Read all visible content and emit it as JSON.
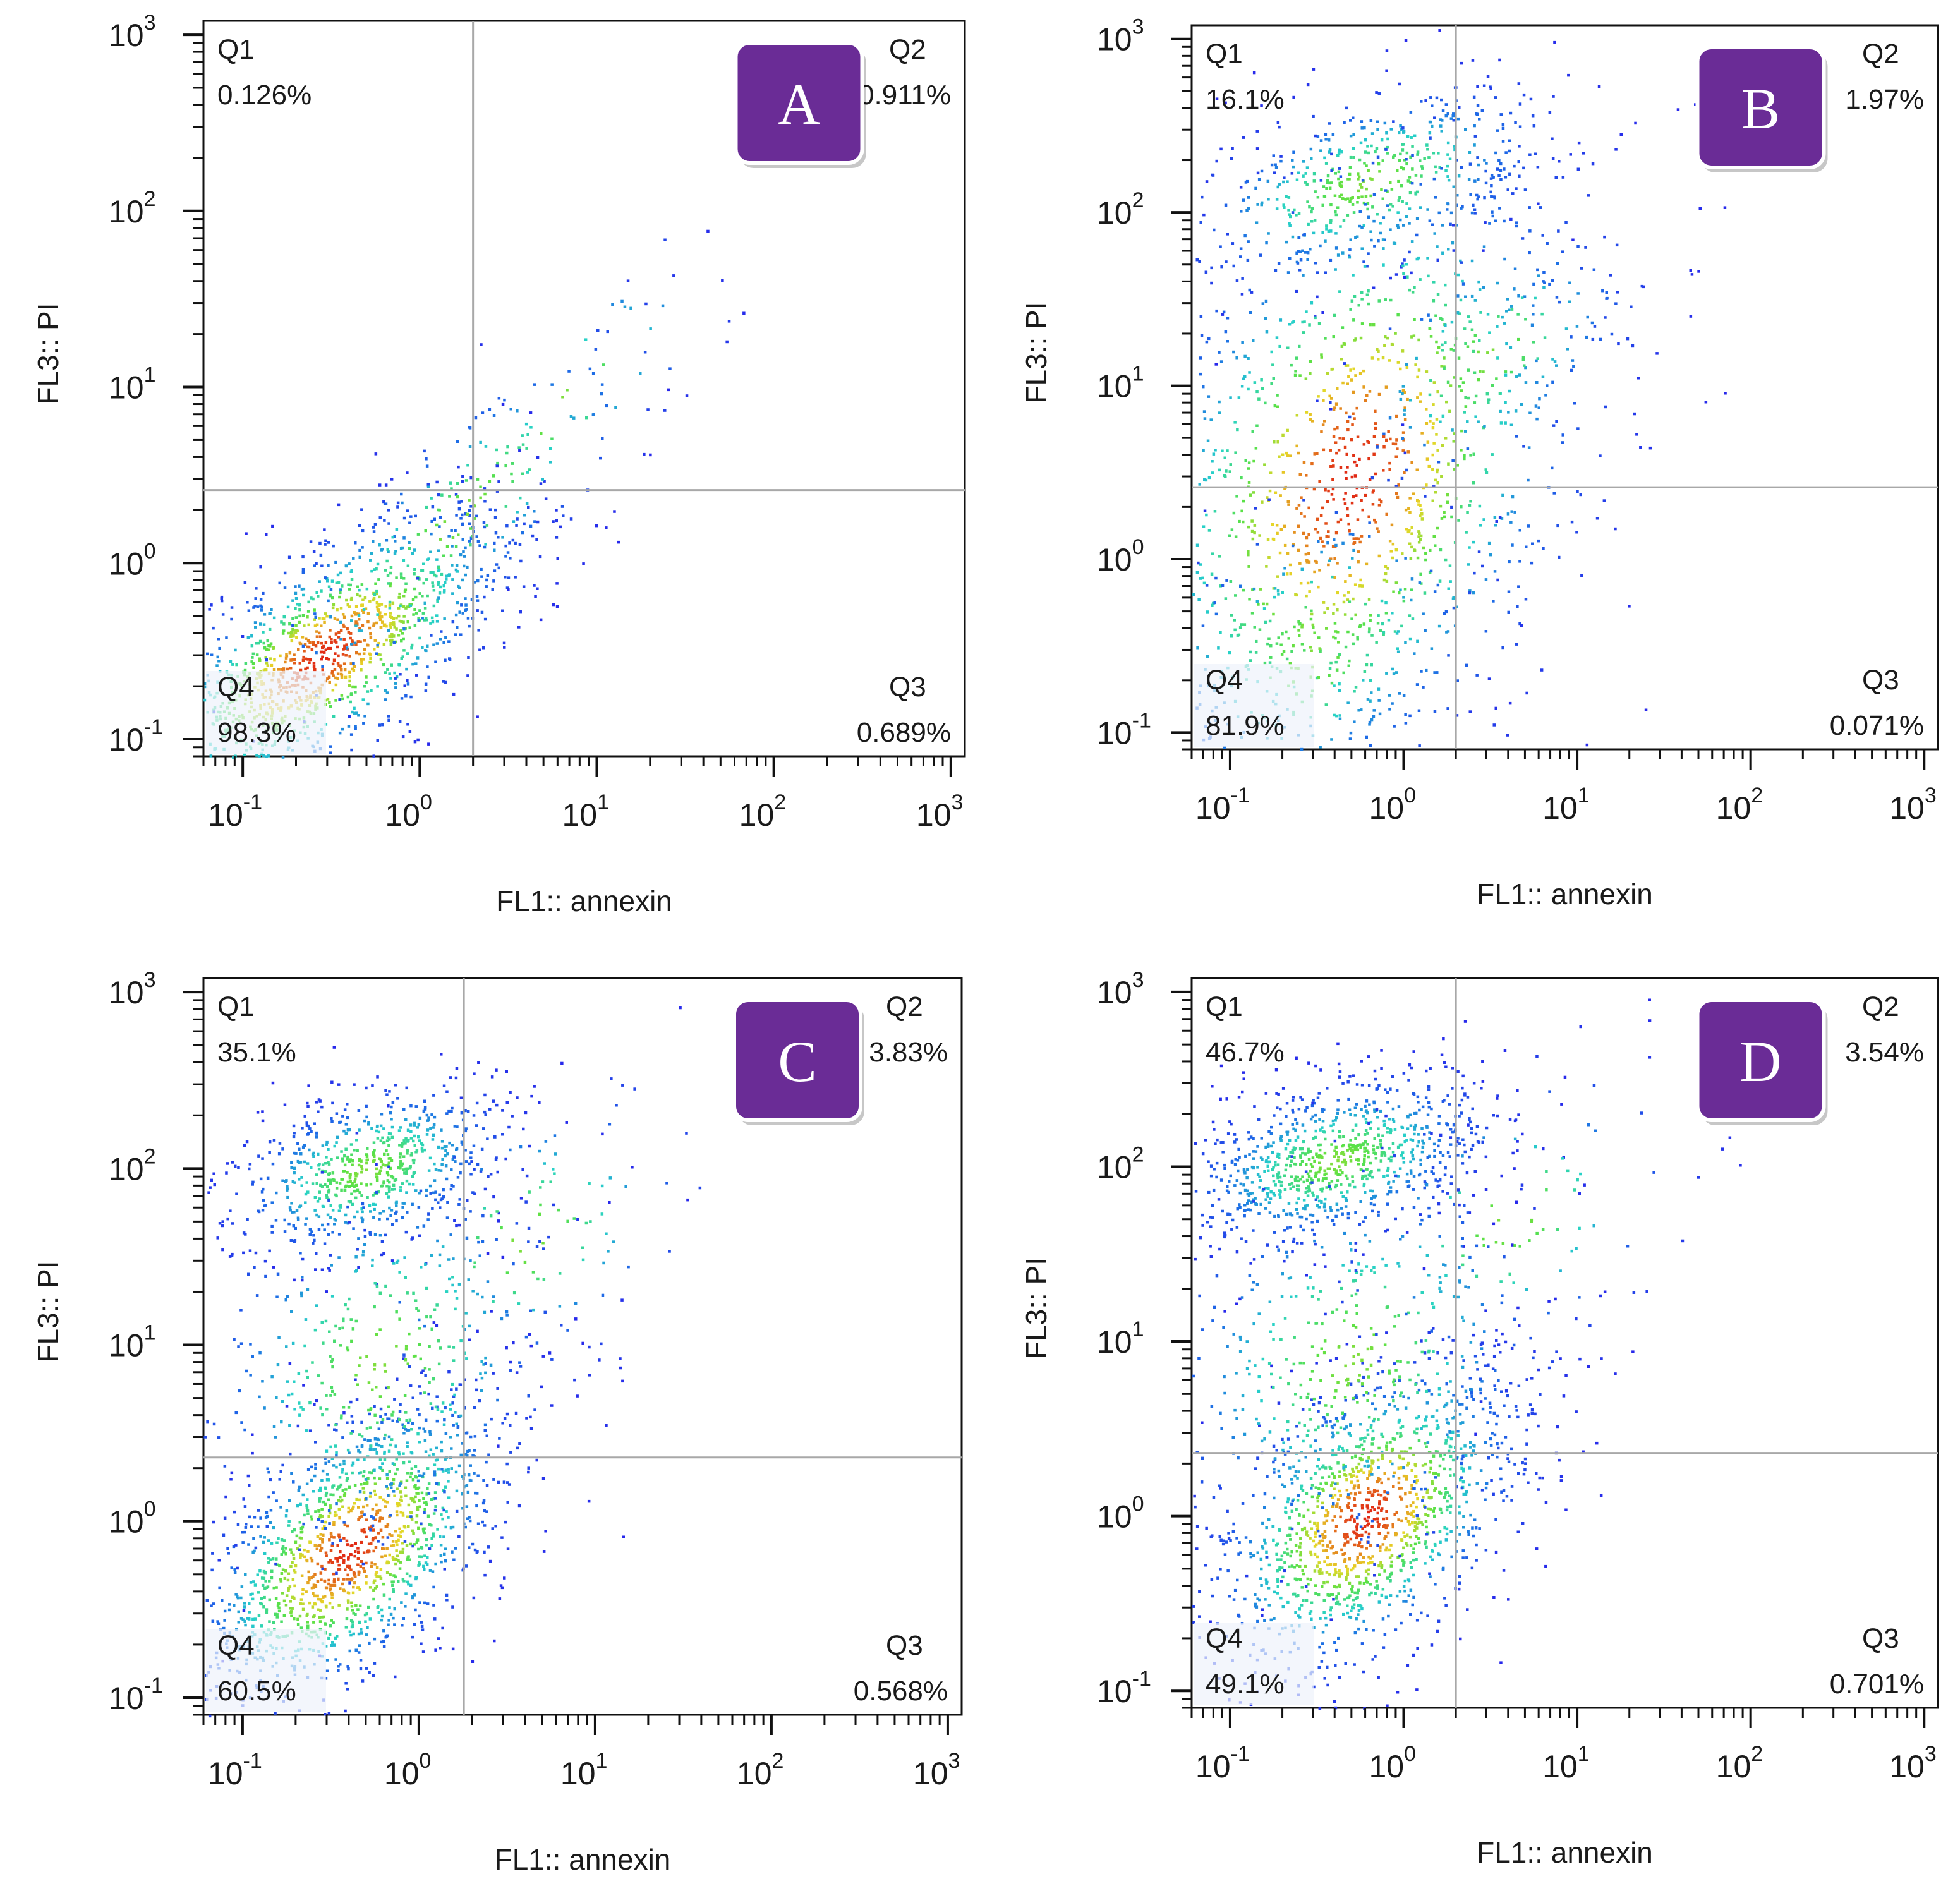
{
  "figure": {
    "description_free": true,
    "colors": {
      "badge": "#6a2c96",
      "badge_text": "#ffffff",
      "gate_line": "#a8a8a8",
      "axis": "#111111",
      "density_low": "#1e1ee6",
      "density_mid": "#2fd9c6",
      "density_high": "#e02a12"
    }
  },
  "chart_data": [
    {
      "type": "scatter",
      "panel": "A",
      "xlabel": "FL1:: annexin",
      "ylabel": "FL3:: PI",
      "xscale": "log",
      "yscale": "log",
      "xlim": [
        0.06,
        1200
      ],
      "ylim": [
        0.08,
        1200
      ],
      "x_ticks": [
        {
          "base": "10",
          "exp": "-1"
        },
        {
          "base": "10",
          "exp": "0"
        },
        {
          "base": "10",
          "exp": "1"
        },
        {
          "base": "10",
          "exp": "2"
        },
        {
          "base": "10",
          "exp": "3"
        }
      ],
      "y_ticks": [
        {
          "base": "10",
          "exp": "-1"
        },
        {
          "base": "10",
          "exp": "0"
        },
        {
          "base": "10",
          "exp": "1"
        },
        {
          "base": "10",
          "exp": "2"
        },
        {
          "base": "10",
          "exp": "3"
        }
      ],
      "gate": {
        "x": 2.0,
        "y": 2.6
      },
      "quadrants": [
        {
          "name": "Q1",
          "value": "0.126%",
          "pos": "top-left"
        },
        {
          "name": "Q2",
          "value": "0.911%",
          "pos": "top-right"
        },
        {
          "name": "Q3",
          "value": "0.689%",
          "pos": "bottom-right"
        },
        {
          "name": "Q4",
          "value": "98.3%",
          "pos": "bottom-left"
        }
      ],
      "populations": [
        {
          "cx": 0.28,
          "cy": 0.3,
          "sx": 0.55,
          "sy": 0.45,
          "n": 1400,
          "rho": 0.7
        },
        {
          "cx": 1.6,
          "cy": 1.8,
          "sx": 0.6,
          "sy": 0.6,
          "n": 220,
          "rho": 0.85
        },
        {
          "cx": 6.0,
          "cy": 8.0,
          "sx": 0.5,
          "sy": 0.5,
          "n": 25,
          "rho": 0.8
        }
      ]
    },
    {
      "type": "scatter",
      "panel": "B",
      "xlabel": "FL1:: annexin",
      "ylabel": "FL3:: PI",
      "xscale": "log",
      "yscale": "log",
      "xlim": [
        0.06,
        1200
      ],
      "ylim": [
        0.08,
        1200
      ],
      "x_ticks": [
        {
          "base": "10",
          "exp": "-1"
        },
        {
          "base": "10",
          "exp": "0"
        },
        {
          "base": "10",
          "exp": "1"
        },
        {
          "base": "10",
          "exp": "2"
        },
        {
          "base": "10",
          "exp": "3"
        }
      ],
      "y_ticks": [
        {
          "base": "10",
          "exp": "-1"
        },
        {
          "base": "10",
          "exp": "0"
        },
        {
          "base": "10",
          "exp": "1"
        },
        {
          "base": "10",
          "exp": "2"
        },
        {
          "base": "10",
          "exp": "3"
        }
      ],
      "gate": {
        "x": 2.0,
        "y": 2.6
      },
      "quadrants": [
        {
          "name": "Q1",
          "value": "16.1%",
          "pos": "top-left"
        },
        {
          "name": "Q2",
          "value": "1.97%",
          "pos": "top-right"
        },
        {
          "name": "Q3",
          "value": "0.071%",
          "pos": "bottom-right"
        },
        {
          "name": "Q4",
          "value": "81.9%",
          "pos": "bottom-left"
        }
      ],
      "populations": [
        {
          "cx": 0.6,
          "cy": 150,
          "sx": 0.55,
          "sy": 0.3,
          "n": 500,
          "rho": 0.5
        },
        {
          "cx": 0.5,
          "cy": 3.0,
          "sx": 0.7,
          "sy": 1.0,
          "n": 1300,
          "rho": 0.35
        },
        {
          "cx": 0.3,
          "cy": 0.3,
          "sx": 0.5,
          "sy": 0.5,
          "n": 250,
          "rho": 0.3
        },
        {
          "cx": 3.0,
          "cy": 15,
          "sx": 0.45,
          "sy": 0.4,
          "n": 150,
          "rho": 0.5
        }
      ]
    },
    {
      "type": "scatter",
      "panel": "C",
      "xlabel": "FL1:: annexin",
      "ylabel": "FL3:: PI",
      "xscale": "log",
      "yscale": "log",
      "xlim": [
        0.06,
        1200
      ],
      "ylim": [
        0.08,
        1200
      ],
      "x_ticks": [
        {
          "base": "10",
          "exp": "-1"
        },
        {
          "base": "10",
          "exp": "0"
        },
        {
          "base": "10",
          "exp": "1"
        },
        {
          "base": "10",
          "exp": "2"
        },
        {
          "base": "10",
          "exp": "3"
        }
      ],
      "y_ticks": [
        {
          "base": "10",
          "exp": "-1"
        },
        {
          "base": "10",
          "exp": "0"
        },
        {
          "base": "10",
          "exp": "1"
        },
        {
          "base": "10",
          "exp": "2"
        },
        {
          "base": "10",
          "exp": "3"
        }
      ],
      "gate": {
        "x": 1.8,
        "y": 2.3
      },
      "quadrants": [
        {
          "name": "Q1",
          "value": "35.1%",
          "pos": "top-left"
        },
        {
          "name": "Q2",
          "value": "3.83%",
          "pos": "top-right"
        },
        {
          "name": "Q3",
          "value": "0.568%",
          "pos": "bottom-right"
        },
        {
          "name": "Q4",
          "value": "60.5%",
          "pos": "bottom-left"
        }
      ],
      "populations": [
        {
          "cx": 0.4,
          "cy": 0.7,
          "sx": 0.45,
          "sy": 0.45,
          "n": 1400,
          "rho": 0.55
        },
        {
          "cx": 0.5,
          "cy": 100,
          "sx": 0.4,
          "sy": 0.25,
          "n": 700,
          "rho": 0.4
        },
        {
          "cx": 0.6,
          "cy": 8.0,
          "sx": 0.55,
          "sy": 0.6,
          "n": 450,
          "rho": 0.2
        },
        {
          "cx": 4.0,
          "cy": 40,
          "sx": 0.5,
          "sy": 0.45,
          "n": 100,
          "rho": 0.4
        }
      ]
    },
    {
      "type": "scatter",
      "panel": "D",
      "xlabel": "FL1:: annexin",
      "ylabel": "FL3:: PI",
      "xscale": "log",
      "yscale": "log",
      "xlim": [
        0.06,
        1200
      ],
      "ylim": [
        0.08,
        1200
      ],
      "x_ticks": [
        {
          "base": "10",
          "exp": "-1"
        },
        {
          "base": "10",
          "exp": "0"
        },
        {
          "base": "10",
          "exp": "1"
        },
        {
          "base": "10",
          "exp": "2"
        },
        {
          "base": "10",
          "exp": "3"
        }
      ],
      "y_ticks": [
        {
          "base": "10",
          "exp": "-1"
        },
        {
          "base": "10",
          "exp": "0"
        },
        {
          "base": "10",
          "exp": "1"
        },
        {
          "base": "10",
          "exp": "2"
        },
        {
          "base": "10",
          "exp": "3"
        }
      ],
      "gate": {
        "x": 2.0,
        "y": 2.3
      },
      "quadrants": [
        {
          "name": "Q1",
          "value": "46.7%",
          "pos": "top-left"
        },
        {
          "name": "Q2",
          "value": "3.54%",
          "pos": "top-right"
        },
        {
          "name": "Q3",
          "value": "0.701%",
          "pos": "bottom-right"
        },
        {
          "name": "Q4",
          "value": "49.1%",
          "pos": "bottom-left"
        }
      ],
      "populations": [
        {
          "cx": 0.6,
          "cy": 1.0,
          "sx": 0.45,
          "sy": 0.45,
          "n": 1300,
          "rho": 0.45
        },
        {
          "cx": 0.4,
          "cy": 110,
          "sx": 0.45,
          "sy": 0.25,
          "n": 900,
          "rho": 0.4
        },
        {
          "cx": 0.5,
          "cy": 8.0,
          "sx": 0.6,
          "sy": 0.6,
          "n": 500,
          "rho": 0.15
        },
        {
          "cx": 4.0,
          "cy": 50,
          "sx": 0.5,
          "sy": 0.45,
          "n": 100,
          "rho": 0.3
        }
      ]
    }
  ]
}
